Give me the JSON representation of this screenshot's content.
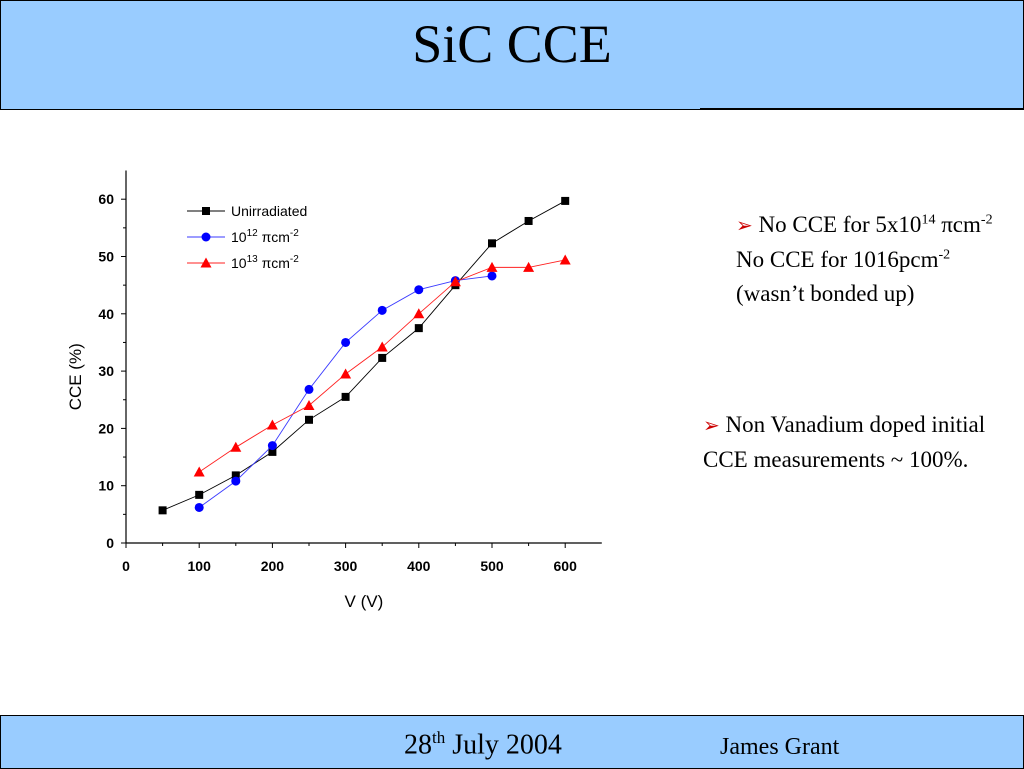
{
  "slide": {
    "title": "SiC CCE",
    "footer_date_base": "28",
    "footer_date_sup": "th",
    "footer_date_rest": " July 2004",
    "footer_author": "James Grant"
  },
  "bullets": [
    {
      "arrow": "➢",
      "parts": [
        " No CCE for 5x10",
        "14",
        " πcm",
        "-2",
        " No CCE for 1016pcm",
        "-2",
        " (wasn’t bonded up)"
      ]
    },
    {
      "arrow": "➢",
      "text": " Non Vanadium doped initial CCE measurements ~ 100%."
    }
  ],
  "chart_data": {
    "type": "line",
    "xlabel": "V (V)",
    "ylabel": "CCE (%)",
    "xlim": [
      0,
      650
    ],
    "ylim": [
      0,
      65
    ],
    "xticks": [
      0,
      100,
      200,
      300,
      400,
      500,
      600
    ],
    "yticks": [
      0,
      10,
      20,
      30,
      40,
      50,
      60
    ],
    "legend_position": "top-left",
    "series": [
      {
        "name": "Unirradiated",
        "legend": {
          "base": "Unirradiated",
          "sup": "",
          "tail": ""
        },
        "marker": "square",
        "color": "#000000",
        "line_color": "#000000",
        "x": [
          50,
          100,
          150,
          200,
          250,
          300,
          350,
          400,
          450,
          500,
          550,
          600
        ],
        "y": [
          5.7,
          8.4,
          11.8,
          15.9,
          21.5,
          25.5,
          32.3,
          37.5,
          45.0,
          52.3,
          56.2,
          59.7
        ]
      },
      {
        "name": "10^12 πcm^-2",
        "legend": {
          "base": "10",
          "sup": "12",
          "tail": " πcm",
          "sup2": "-2"
        },
        "marker": "circle",
        "color": "#0000ff",
        "line_color": "#3a3aff",
        "x": [
          100,
          150,
          200,
          250,
          300,
          350,
          400,
          450,
          500
        ],
        "y": [
          6.2,
          10.8,
          17.0,
          26.8,
          35.0,
          40.6,
          44.2,
          45.8,
          46.6
        ]
      },
      {
        "name": "10^13 πcm^-2",
        "legend": {
          "base": "10",
          "sup": "13",
          "tail": " πcm",
          "sup2": "-2"
        },
        "marker": "triangle",
        "color": "#ff0000",
        "line_color": "#ff2020",
        "x": [
          100,
          150,
          200,
          250,
          300,
          350,
          400,
          450,
          500,
          550,
          600
        ],
        "y": [
          12.4,
          16.7,
          20.6,
          24.0,
          29.5,
          34.2,
          40.0,
          45.6,
          48.1,
          48.1,
          49.4
        ]
      }
    ]
  }
}
